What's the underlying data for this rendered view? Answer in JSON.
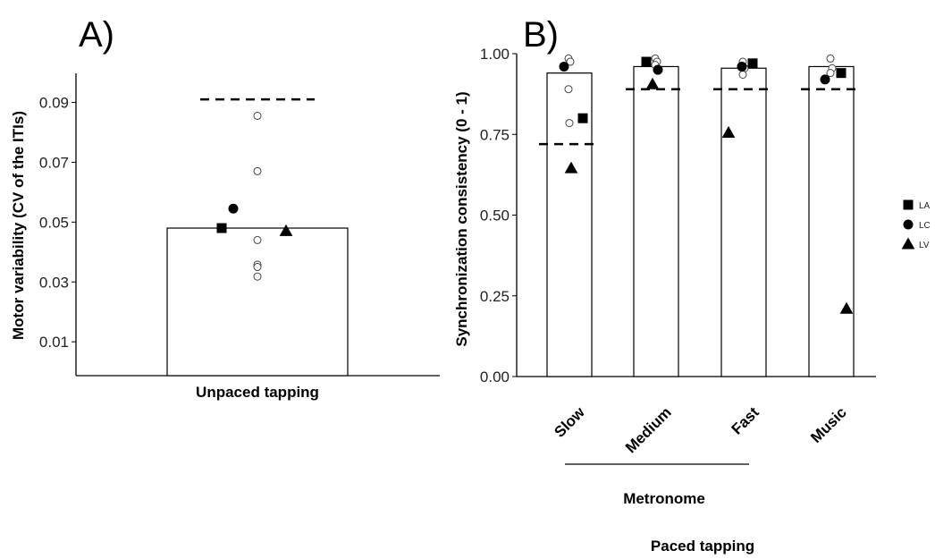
{
  "chart_data": [
    {
      "panel_label": "A)",
      "type": "bar",
      "categories": [
        "Unpaced tapping"
      ],
      "bar_values": [
        0.048
      ],
      "reference_line": [
        0.091
      ],
      "ylabel": "Motor variability (CV of the ITIs)",
      "xlabel": "",
      "ylim": [
        0,
        0.1
      ],
      "yticks": [
        "0.01",
        "0.03",
        "0.05",
        "0.07",
        "0.09"
      ],
      "grid": false,
      "points": [
        {
          "group": "control",
          "x": "Unpaced tapping",
          "y": 0.0855
        },
        {
          "group": "control",
          "x": "Unpaced tapping",
          "y": 0.067
        },
        {
          "group": "control",
          "x": "Unpaced tapping",
          "y": 0.044
        },
        {
          "group": "control",
          "x": "Unpaced tapping",
          "y": 0.0358
        },
        {
          "group": "control",
          "x": "Unpaced tapping",
          "y": 0.035
        },
        {
          "group": "control",
          "x": "Unpaced tapping",
          "y": 0.0318
        },
        {
          "group": "LA",
          "x": "Unpaced tapping",
          "y": 0.048
        },
        {
          "group": "LC",
          "x": "Unpaced tapping",
          "y": 0.0545
        },
        {
          "group": "LV",
          "x": "Unpaced tapping",
          "y": 0.047
        }
      ]
    },
    {
      "panel_label": "B)",
      "type": "bar",
      "categories": [
        "Slow",
        "Medium",
        "Fast",
        "Music"
      ],
      "bar_values": [
        0.94,
        0.96,
        0.955,
        0.96
      ],
      "reference_line": [
        0.72,
        0.89,
        0.89,
        0.89
      ],
      "ylabel": "Synchronization consistency (0 - 1)",
      "xlabel": "Paced tapping",
      "bracket_label": "Metronome",
      "bracket_categories": [
        "Slow",
        "Medium",
        "Fast"
      ],
      "ylim": [
        0,
        1
      ],
      "yticks": [
        "0.00",
        "0.25",
        "0.50",
        "0.75",
        "1.00"
      ],
      "grid": false,
      "legend": {
        "position": "right",
        "entries": [
          {
            "label": "LA",
            "shape": "square"
          },
          {
            "label": "LC",
            "shape": "circle"
          },
          {
            "label": "LV",
            "shape": "triangle"
          }
        ]
      },
      "points": [
        {
          "group": "control",
          "x": "Slow",
          "y": 0.985
        },
        {
          "group": "control",
          "x": "Slow",
          "y": 0.975
        },
        {
          "group": "control",
          "x": "Slow",
          "y": 0.89
        },
        {
          "group": "control",
          "x": "Slow",
          "y": 0.785
        },
        {
          "group": "LA",
          "x": "Slow",
          "y": 0.8
        },
        {
          "group": "LC",
          "x": "Slow",
          "y": 0.96
        },
        {
          "group": "LV",
          "x": "Slow",
          "y": 0.645
        },
        {
          "group": "control",
          "x": "Medium",
          "y": 0.985
        },
        {
          "group": "control",
          "x": "Medium",
          "y": 0.975
        },
        {
          "group": "control",
          "x": "Medium",
          "y": 0.965
        },
        {
          "group": "LA",
          "x": "Medium",
          "y": 0.975
        },
        {
          "group": "LC",
          "x": "Medium",
          "y": 0.95
        },
        {
          "group": "LV",
          "x": "Medium",
          "y": 0.905
        },
        {
          "group": "control",
          "x": "Fast",
          "y": 0.975
        },
        {
          "group": "control",
          "x": "Fast",
          "y": 0.955
        },
        {
          "group": "control",
          "x": "Fast",
          "y": 0.935
        },
        {
          "group": "LA",
          "x": "Fast",
          "y": 0.97
        },
        {
          "group": "LC",
          "x": "Fast",
          "y": 0.96
        },
        {
          "group": "LV",
          "x": "Fast",
          "y": 0.755
        },
        {
          "group": "control",
          "x": "Music",
          "y": 0.985
        },
        {
          "group": "control",
          "x": "Music",
          "y": 0.955
        },
        {
          "group": "control",
          "x": "Music",
          "y": 0.94
        },
        {
          "group": "LA",
          "x": "Music",
          "y": 0.94
        },
        {
          "group": "LC",
          "x": "Music",
          "y": 0.92
        },
        {
          "group": "LV",
          "x": "Music",
          "y": 0.21
        }
      ]
    }
  ]
}
